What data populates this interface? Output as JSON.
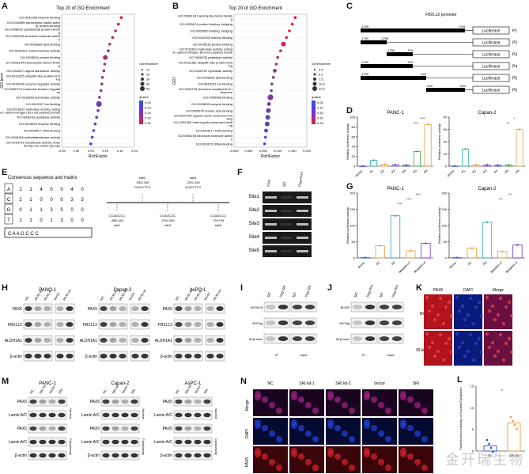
{
  "panels": {
    "A": "A",
    "B": "B",
    "C": "C",
    "D": "D",
    "E": "E",
    "F": "F",
    "G": "G",
    "H": "H",
    "I": "I",
    "J": "J",
    "K": "K",
    "L": "L",
    "M": "M",
    "N": "N"
  },
  "chart_data": [
    {
      "id": "A",
      "type": "scatter",
      "title": "Top 20 of GO Enrichment",
      "xlabel": "RichFactor",
      "ylabel": "GO term",
      "xlim": [
        -0.05,
        0.2
      ],
      "xticks": [
        "-0.05",
        "0.00",
        "0.05",
        "0.10",
        "0.15",
        "0.20"
      ],
      "terms": [
        "GO:0042393 Histone binding",
        "GO:0000989 transcription factor activity, protein binding",
        "GO:0008092 cytoskeletal protein binding",
        "GO:0005198 structural molecule activity",
        "GO:0008289 lipid binding",
        "GO:0016491 oxidoreductase activity",
        "GO:0005515 protein binding",
        "GO:0008134 transcription factor binding",
        "GO:0004871 signal transducer activity",
        "GO:0031625 ubiquitin-like protein binding",
        "GO:0030234 enzyme regulator activity",
        "GO:0060772 molecular function regulation",
        "GO:0016853 isomerase activity",
        "GO:0043167 ion binding",
        "GO:0016810 hydrolase activity, acting on carbon-nitrogen (but not peptide) bonds",
        "GO:0008233 peptidase activity",
        "GO:0019899 enzyme binding",
        "GO:0003677 DNA binding",
        "GO:0008168 methyltransferase activity",
        "GO:0016741 transferase activity, transferring one-carbon groups"
      ],
      "x": [
        0.155,
        0.145,
        0.135,
        0.125,
        0.115,
        0.11,
        0.1,
        0.098,
        0.095,
        0.09,
        0.088,
        0.085,
        0.08,
        0.078,
        0.075,
        0.07,
        0.065,
        0.06,
        0.055,
        0.05
      ],
      "size": [
        3,
        3,
        3,
        3,
        3,
        3,
        5,
        3,
        3,
        3,
        3,
        3,
        3,
        6,
        3,
        3,
        3,
        3,
        3,
        3
      ],
      "q": [
        0.02,
        0.04,
        0.05,
        0.06,
        0.07,
        0.08,
        0.09,
        0.1,
        0.1,
        0.11,
        0.12,
        0.12,
        0.13,
        0.15,
        0.15,
        0.16,
        0.17,
        0.18,
        0.19,
        0.2
      ],
      "legend": {
        "size_title": "GeneNumber",
        "size_labels": [
          "10",
          "20",
          "30",
          "40",
          "50"
        ],
        "color_title": "qvalue",
        "color_labels": [
          "0.05",
          "0.10",
          "0.15",
          "0.20",
          "0.25"
        ]
      }
    },
    {
      "id": "B",
      "type": "scatter",
      "title": "Top 20 of GO Enrichment",
      "xlabel": "RichFactor",
      "ylabel": "GO l",
      "xlim": [
        -0.05,
        0.2
      ],
      "xticks": [
        "-0.050",
        "0.000",
        "0.050",
        "0.100",
        "0.150",
        "0.200"
      ],
      "terms": [
        "GO:0008134 transcription factor binding",
        "GO:0030674 protein binding, bridging",
        "GO:0060090 binding, bridging",
        "GO:0042393 histone binding",
        "GO:0005515 protein binding",
        "GO:0016810 hydrolase activity, acting on carbon-nitrogen (but not peptide) bonds",
        "GO:0008233 peptidase activity",
        "GO:0032182 ubiquitin-like protein binding",
        "GO:0016787 hydrolase activity",
        "GO:0008289 lipid binding",
        "GO:0043167 ion binding",
        "GO:0005735 structural constituent of ribosome",
        "GO:0005488 binding",
        "GO:0019899 enzyme binding",
        "GO:0003676 nucleic acid binding",
        "GO:0097159 organic cyclic compound binding",
        "GO:1901363 heterocyclic compound binding",
        "GO:0003677 DNA binding",
        "GO:0005198 structural molecule activity",
        "GO:0003723 RNA binding"
      ],
      "x": [
        0.16,
        0.15,
        0.14,
        0.13,
        0.12,
        0.11,
        0.1,
        0.095,
        0.09,
        0.085,
        0.08,
        0.078,
        0.075,
        0.07,
        0.068,
        0.066,
        0.064,
        0.06,
        0.058,
        0.055
      ],
      "size": [
        3,
        3,
        3,
        3,
        5,
        3,
        3,
        3,
        4,
        3,
        3,
        3,
        6,
        4,
        5,
        5,
        5,
        4,
        3,
        3
      ],
      "q": [
        0.01,
        0.02,
        0.03,
        0.04,
        0.05,
        0.06,
        0.07,
        0.08,
        0.09,
        0.1,
        0.11,
        0.12,
        0.13,
        0.14,
        0.15,
        0.16,
        0.17,
        0.18,
        0.19,
        0.2
      ],
      "legend": {
        "size_title": "GeneNumber",
        "size_labels": [
          "2.5",
          "5.0",
          "7.5",
          "10.0",
          "12.5"
        ],
        "color_title": "qvalue",
        "color_labels": [
          "0.05",
          "0.10",
          "0.15",
          "0.20",
          "0.25"
        ]
      }
    },
    {
      "id": "D1",
      "type": "bar",
      "title": "PANC-1",
      "ylabel": "Relative luciferase activity",
      "categories": [
        "Vector",
        "P1",
        "P2",
        "P3",
        "P4",
        "P5",
        "P6"
      ],
      "values": [
        0.2,
        12,
        4,
        3,
        2,
        30,
        85
      ],
      "ylim": [
        0,
        100
      ],
      "yticks": [
        "0",
        "20",
        "40",
        "60",
        "80",
        "100"
      ],
      "sig": [
        "****",
        "****"
      ]
    },
    {
      "id": "D2",
      "type": "bar",
      "title": "Capan-2",
      "ylabel": "Relative luciferase activity",
      "categories": [
        "Vector",
        "P1",
        "P2",
        "P3",
        "P4",
        "P5",
        "P6"
      ],
      "values": [
        0.3,
        28,
        2,
        2,
        1.5,
        2,
        60
      ],
      "ylim": [
        0,
        80
      ],
      "yticks": [
        "0",
        "20",
        "40",
        "60",
        "80"
      ],
      "sig": [
        "*",
        "**"
      ]
    },
    {
      "id": "G1",
      "type": "bar",
      "title": "PANC-1",
      "ylabel": "Relative luciferase activity",
      "categories": [
        "Vector",
        "P1",
        "P6",
        "Mutation-2",
        "Mutation-4"
      ],
      "values": [
        1,
        38,
        130,
        22,
        45
      ],
      "ylim": [
        0,
        200
      ],
      "yticks": [
        "0",
        "50",
        "100",
        "150",
        "200"
      ],
      "sig": [
        "****",
        "****",
        "****"
      ]
    },
    {
      "id": "G2",
      "type": "bar",
      "title": "Capan-2",
      "ylabel": "Relative luciferase activity",
      "categories": [
        "Vector",
        "P1",
        "P6",
        "Mutation-2",
        "Mutation-4"
      ],
      "values": [
        1,
        30,
        110,
        20,
        40
      ],
      "ylim": [
        0,
        200
      ],
      "yticks": [
        "0",
        "50",
        "100",
        "150",
        "200"
      ],
      "sig": [
        "***",
        "***"
      ]
    },
    {
      "id": "L",
      "type": "bar",
      "ylabel": "Fluorescence intensity of Nuclear/Cytoplasm",
      "categories": [
        "NC",
        "SRI kd"
      ],
      "values": [
        1.2,
        6.5
      ],
      "ylim": [
        0,
        15
      ],
      "yticks": [
        "0",
        "5",
        "10",
        "15"
      ],
      "sig": [
        "*"
      ]
    }
  ],
  "c": {
    "title": "FBXL12 promoter",
    "rows": [
      {
        "left": "-1750",
        "right": "+251",
        "name": "P1"
      },
      {
        "left": "-1750",
        "right": "-1250",
        "name": "P2"
      },
      {
        "left": "-1250",
        "right": "-750",
        "name": "P3"
      },
      {
        "left": "-1750",
        "right": "-750",
        "name": "P4"
      },
      {
        "left": "-1750",
        "right": "-492",
        "name": "P5"
      },
      {
        "left": "-492",
        "right": "+251",
        "name": "P6"
      }
    ],
    "luc": "Luciferase"
  },
  "e": {
    "title": "Consensus sequence and matrix",
    "rows": [
      "A",
      "C",
      "G",
      "T"
    ],
    "matrix": [
      [
        "1",
        "1",
        "4",
        "0",
        "0",
        "4",
        "0"
      ],
      [
        "2",
        "1",
        "0",
        "0",
        "0",
        "3",
        "3"
      ],
      [
        "0",
        "1",
        "1",
        "3",
        "0",
        "0",
        "0"
      ],
      [
        "1",
        "1",
        "0",
        "1",
        "3",
        "0",
        "0"
      ]
    ],
    "consensus": "C A A G C C C",
    "sites": [
      {
        "name": "site1",
        "seq": "CCAGCCC",
        "pos": "-468/-461"
      },
      {
        "name": "site2",
        "seq": "GGGCTTG",
        "pos": "-353/-346"
      },
      {
        "name": "site3",
        "seq": "CCAGCCC",
        "pos": "-276/-269"
      },
      {
        "name": "site4",
        "seq": "GGGCTTG",
        "pos": "-200/-193"
      },
      {
        "name": "site5",
        "seq": "CCAGCCC",
        "pos": "+29/+36"
      }
    ]
  },
  "f": {
    "cols": [
      "Input",
      "IgG",
      "Flag-PAX5"
    ],
    "rows": [
      "Site1",
      "Site2",
      "Site3",
      "Site4",
      "Site5"
    ]
  },
  "h": {
    "groups": [
      {
        "name": "PANC-1",
        "cols": [
          "NC",
          "PAX5 si-1",
          "PAX5 si-2",
          "Vector",
          "PAX5 oe"
        ]
      },
      {
        "name": "Capan-2",
        "cols": [
          "NC",
          "PAX5 si-1",
          "PAX5 si-2",
          "Vector",
          "PAX5 oe"
        ]
      },
      {
        "name": "AsPC-1",
        "cols": [
          "NC",
          "PAX5 si-1",
          "PAX5 si-2",
          "Vector",
          "PAX5 oe"
        ]
      }
    ],
    "rows": [
      "PAX5",
      "FBXL12",
      "ALDH1A1",
      "β-actin"
    ]
  },
  "i": {
    "cols": [
      "IgG",
      "Flag-SRI",
      "IgG",
      "Flag-SRI"
    ],
    "rows": [
      "IB:PAX5",
      "IB:Flag",
      "IB:β-actin"
    ],
    "foot": [
      "IP",
      "Input"
    ]
  },
  "j": {
    "cols": [
      "IgG",
      "Flag-PAX5",
      "IgG",
      "Flag-PAX5"
    ],
    "rows": [
      "IB:SRI",
      "IB:Flag",
      "IB:β-actin"
    ],
    "foot": [
      "IP",
      "Input"
    ]
  },
  "k": {
    "cols": [
      "PAX5",
      "DAPI",
      "Merge"
    ],
    "rows": [
      "NC",
      "SRI kd"
    ]
  },
  "m": {
    "groups": [
      {
        "name": "PANC-1",
        "cols": [
          "NC",
          "SRI kd",
          "Vector",
          "SRI"
        ]
      },
      {
        "name": "Capan-2",
        "cols": [
          "NC",
          "SRI kd",
          "Vector",
          "SRI"
        ]
      },
      {
        "name": "AsPC-1",
        "cols": [
          "NC",
          "SRI kd",
          "Vector",
          "SRI"
        ]
      }
    ],
    "rows": [
      "PAX5",
      "Lamin A/C",
      "PAX5",
      "Lamin A/C",
      "β-actin"
    ],
    "fractions": [
      "Nuclear",
      "Cytoplasmy"
    ]
  },
  "n": {
    "cols": [
      "NC",
      "SRI kd-1",
      "SRI kd-2",
      "Vector",
      "SRI"
    ],
    "rows": [
      "Merge",
      "DAPI",
      "PAX5"
    ]
  },
  "watermark": "金开瑞生物",
  "colors": {
    "red": "#e8202a",
    "purple": "#7b2fd1",
    "blue": "#3050e0",
    "teal": "#29a9a8",
    "orange": "#f09a3a",
    "green": "#3aa84a"
  }
}
